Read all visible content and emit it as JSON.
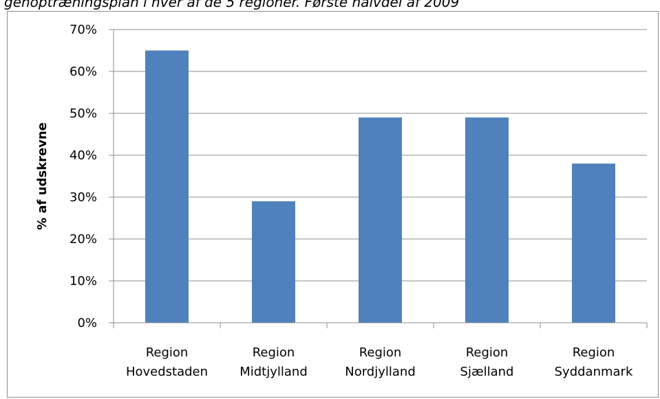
{
  "caption": "genoptræningsplan i hver af de 5 regioner. Første halvdel af 2009",
  "chart_data": {
    "type": "bar",
    "title": "",
    "xlabel": "",
    "ylabel": "% af udskrevne",
    "categories": [
      [
        "Region",
        "Hovedstaden"
      ],
      [
        "Region",
        "Midtjylland"
      ],
      [
        "Region",
        "Nordjylland"
      ],
      [
        "Region",
        "Sjælland"
      ],
      [
        "Region",
        "Syddanmark"
      ]
    ],
    "values": [
      65,
      29,
      49,
      49,
      38
    ],
    "ylim": [
      0,
      70
    ],
    "yticks": [
      0,
      10,
      20,
      30,
      40,
      50,
      60,
      70
    ],
    "ytick_labels": [
      "0%",
      "10%",
      "20%",
      "30%",
      "40%",
      "50%",
      "60%",
      "70%"
    ],
    "grid": true,
    "legend": "none",
    "bar_color": "#4f81bd",
    "grid_color": "#8c8c8c"
  }
}
